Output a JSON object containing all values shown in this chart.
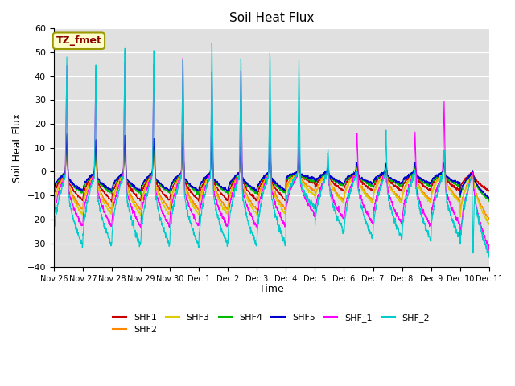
{
  "title": "Soil Heat Flux",
  "ylabel": "Soil Heat Flux",
  "xlabel": "Time",
  "ylim": [
    -40,
    60
  ],
  "yticks": [
    -40,
    -30,
    -20,
    -10,
    0,
    10,
    20,
    30,
    40,
    50,
    60
  ],
  "annotation": "TZ_fmet",
  "bg_color": "#e0e0e0",
  "fig_color": "#ffffff",
  "series": [
    {
      "name": "SHF1",
      "color": "#cc0000"
    },
    {
      "name": "SHF2",
      "color": "#ff8800"
    },
    {
      "name": "SHF3",
      "color": "#ddcc00"
    },
    {
      "name": "SHF4",
      "color": "#00bb00"
    },
    {
      "name": "SHF5",
      "color": "#0000cc"
    },
    {
      "name": "SHF_1",
      "color": "#ff00ff"
    },
    {
      "name": "SHF_2",
      "color": "#00cccc"
    }
  ],
  "xtick_labels": [
    "Nov 26",
    "Nov 27",
    "Nov 28",
    "Nov 29",
    "Nov 30",
    "Dec 1",
    "Dec 2",
    "Dec 3",
    "Dec 4",
    "Dec 5",
    "Dec 6",
    "Dec 7",
    "Dec 8",
    "Dec 9",
    "Dec 10",
    "Dec 11"
  ],
  "n_days": 15,
  "pts_per_day": 144
}
